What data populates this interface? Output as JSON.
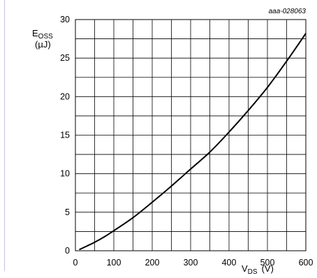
{
  "chart_data": {
    "type": "line",
    "annotation": "aaa-028063",
    "ylabel": {
      "main": "E",
      "sub": "OSS",
      "unit": "(µJ)"
    },
    "xlabel": {
      "main": "V",
      "sub": "DS",
      "unit": "(V)"
    },
    "xlim": [
      0,
      600
    ],
    "ylim": [
      0,
      30
    ],
    "xticks": [
      0,
      100,
      200,
      300,
      400,
      500,
      600
    ],
    "yticks": [
      0,
      5,
      10,
      15,
      20,
      25,
      30
    ],
    "grid": true,
    "series": [
      {
        "color": "#000000",
        "x": [
          10,
          25,
          50,
          75,
          100,
          150,
          200,
          250,
          300,
          350,
          400,
          450,
          500,
          550,
          600
        ],
        "y": [
          0.15,
          0.5,
          1.1,
          1.8,
          2.6,
          4.3,
          6.3,
          8.4,
          10.6,
          12.8,
          15.4,
          18.2,
          21.2,
          24.6,
          28.2
        ]
      }
    ]
  }
}
